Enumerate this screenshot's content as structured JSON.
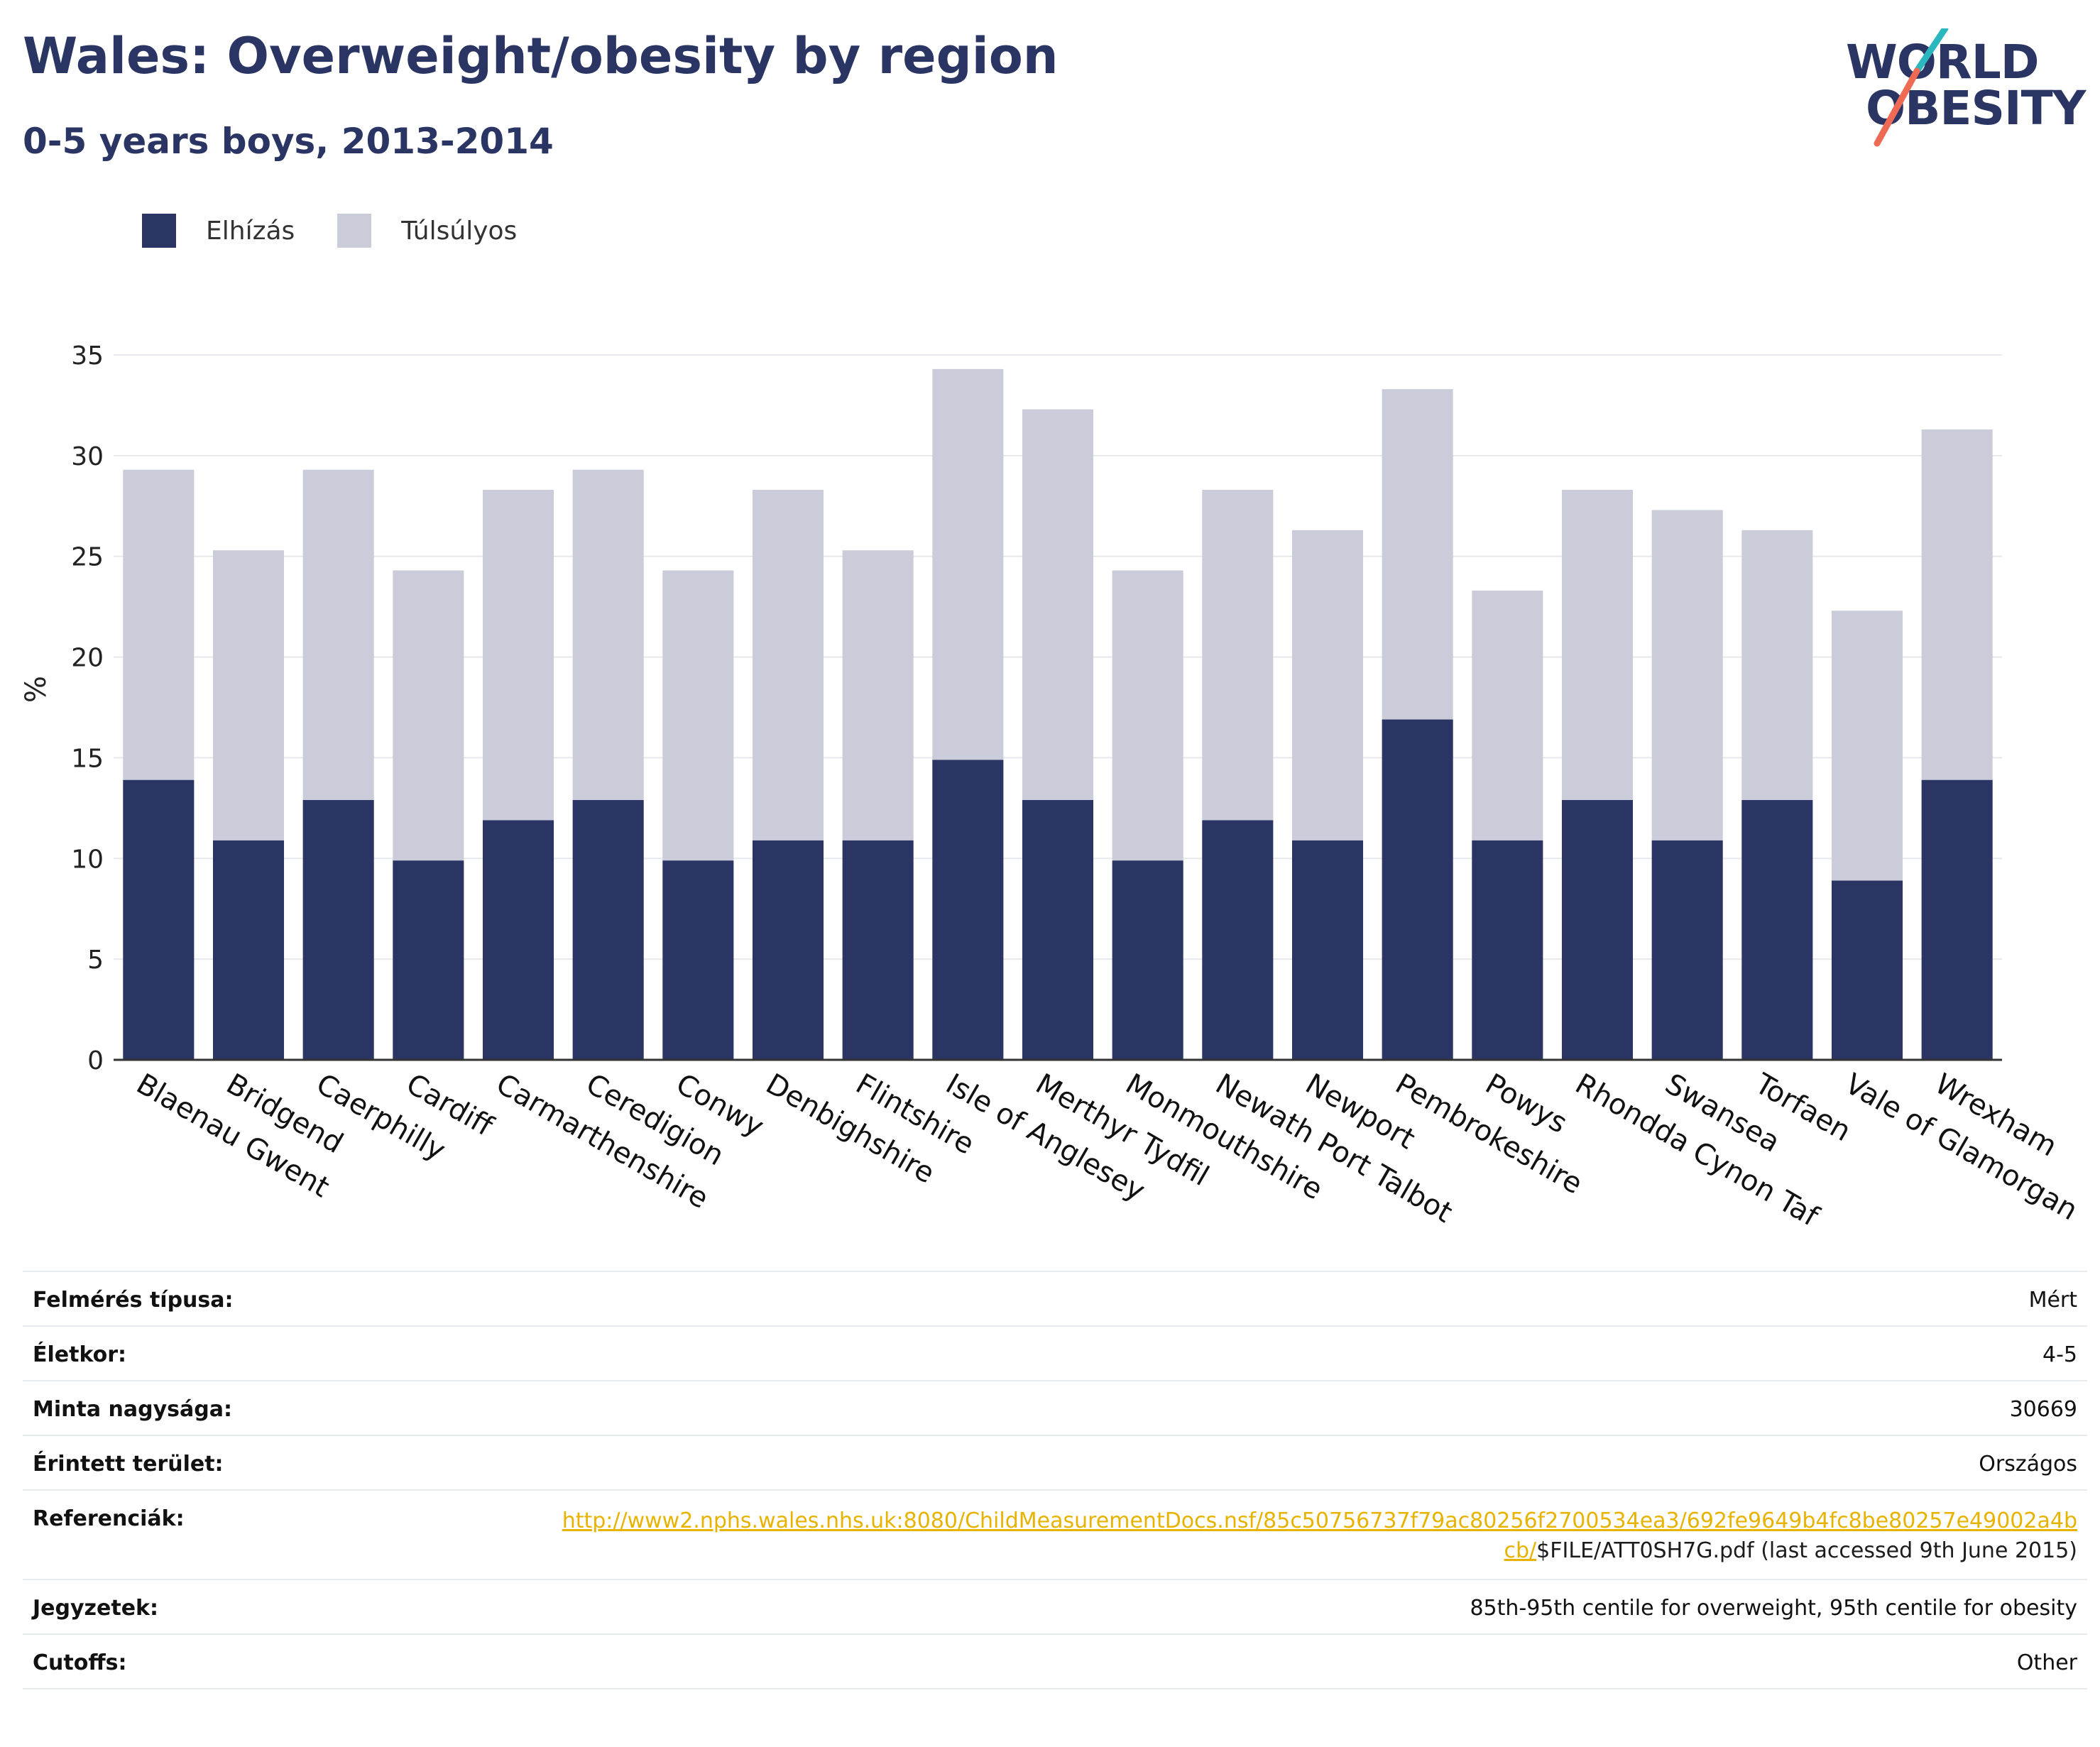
{
  "header": {
    "title": "Wales: Overweight/obesity by region",
    "subtitle": "0-5 years boys, 2013-2014"
  },
  "logo": {
    "line1": "WORLD",
    "line2": "OBESITY"
  },
  "legend": [
    {
      "label": "Elhízás",
      "color": "#2a3564"
    },
    {
      "label": "Túlsúlyos",
      "color": "#cbccd9"
    }
  ],
  "chart_data": {
    "type": "bar",
    "stacked": true,
    "ylabel": "%",
    "ylim": [
      0,
      35
    ],
    "yticks": [
      0,
      5,
      10,
      15,
      20,
      25,
      30,
      35
    ],
    "grid": true,
    "legend_position": "top-left",
    "categories": [
      "Blaenau Gwent",
      "Bridgend",
      "Caerphilly",
      "Cardiff",
      "Carmarthenshire",
      "Ceredigion",
      "Conwy",
      "Denbighshire",
      "Flintshire",
      "Isle of Anglesey",
      "Merthyr Tydfil",
      "Monmouthshire",
      "Newath Port Talbot",
      "Newport",
      "Pembrokeshire",
      "Powys",
      "Rhondda Cynon Taf",
      "Swansea",
      "Torfaen",
      "Vale of Glamorgan",
      "Wrexham"
    ],
    "series": [
      {
        "name": "Elhízás",
        "color": "#2a3564",
        "values": [
          13.9,
          10.9,
          12.9,
          9.9,
          11.9,
          12.9,
          9.9,
          10.9,
          10.9,
          14.9,
          12.9,
          9.9,
          11.9,
          10.9,
          16.9,
          10.9,
          12.9,
          10.9,
          12.9,
          8.9,
          13.9
        ]
      },
      {
        "name": "Túlsúlyos",
        "color": "#cbccd9",
        "values": [
          15.4,
          14.4,
          16.4,
          14.4,
          16.4,
          16.4,
          14.4,
          17.4,
          14.4,
          19.4,
          19.4,
          14.4,
          16.4,
          15.4,
          16.4,
          12.4,
          15.4,
          16.4,
          13.4,
          13.4,
          17.4
        ]
      }
    ]
  },
  "meta": [
    {
      "key": "Felmérés típusa:",
      "value": "Mért"
    },
    {
      "key": "Életkor:",
      "value": "4-5"
    },
    {
      "key": "Minta nagysága:",
      "value": "30669"
    },
    {
      "key": "Érintett terület:",
      "value": "Országos"
    }
  ],
  "reference": {
    "key": "Referenciák:",
    "link": "http://www2.nphs.wales.nhs.uk:8080/ChildMeasurementDocs.nsf/85c50756737f79ac80256f2700534ea3/692fe9649b4fc8be80257e49002a4bcb/",
    "rest": "$FILE/ATT0SH7G.pdf (last accessed 9th June 2015)"
  },
  "meta2": [
    {
      "key": "Jegyzetek:",
      "value": "85th-95th centile for overweight, 95th centile for obesity"
    },
    {
      "key": "Cutoffs:",
      "value": "Other"
    }
  ]
}
